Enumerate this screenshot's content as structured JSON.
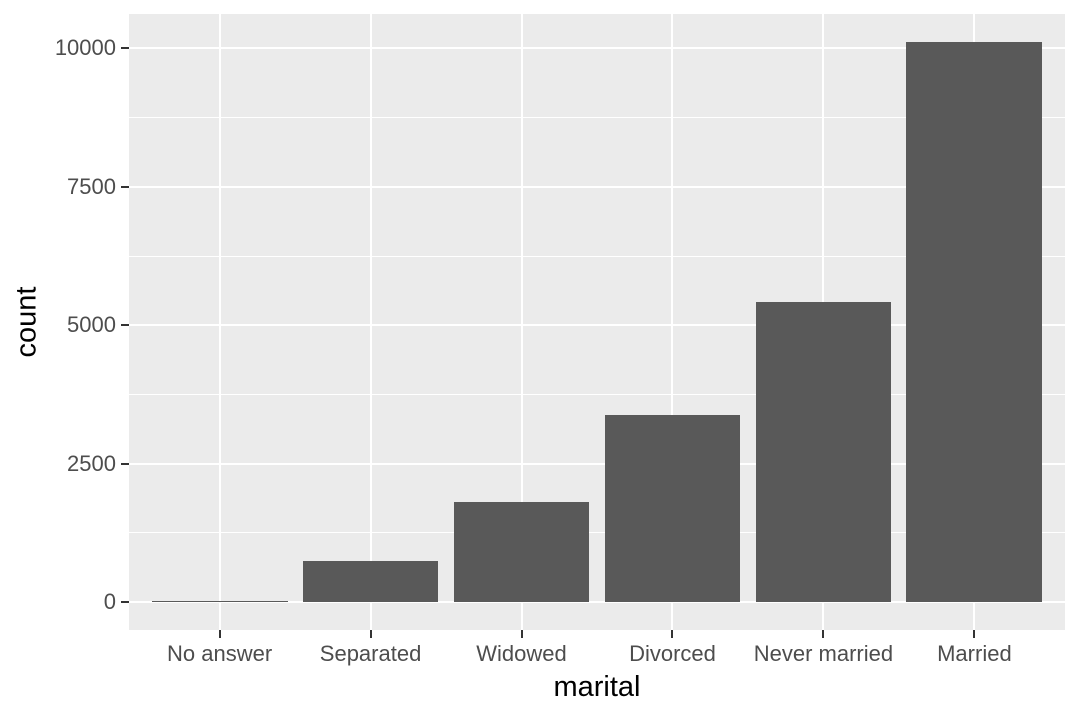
{
  "chart_data": {
    "type": "bar",
    "title": "",
    "xlabel": "marital",
    "ylabel": "count",
    "categories": [
      "No answer",
      "Separated",
      "Widowed",
      "Divorced",
      "Never married",
      "Married"
    ],
    "values": [
      17,
      743,
      1807,
      3383,
      5416,
      10117
    ],
    "yticks": [
      0,
      2500,
      5000,
      7500,
      10000
    ],
    "ytick_labels": [
      "0",
      "2500",
      "5000",
      "7500",
      "10000"
    ],
    "yticks_minor": [
      1250,
      3750,
      6250,
      8750
    ],
    "ylim": [
      -506,
      10623
    ],
    "x_range": [
      0.4,
      6.6
    ],
    "bar_width_units": 0.9,
    "grid": true,
    "legend": "none",
    "colors": {
      "bar_fill": "#595959",
      "panel_background": "#ebebeb",
      "gridline": "#ffffff",
      "tick_label": "#4d4d4d",
      "axis_title": "#000000",
      "tick_mark": "#333333",
      "figure_background": "#ffffff"
    }
  }
}
